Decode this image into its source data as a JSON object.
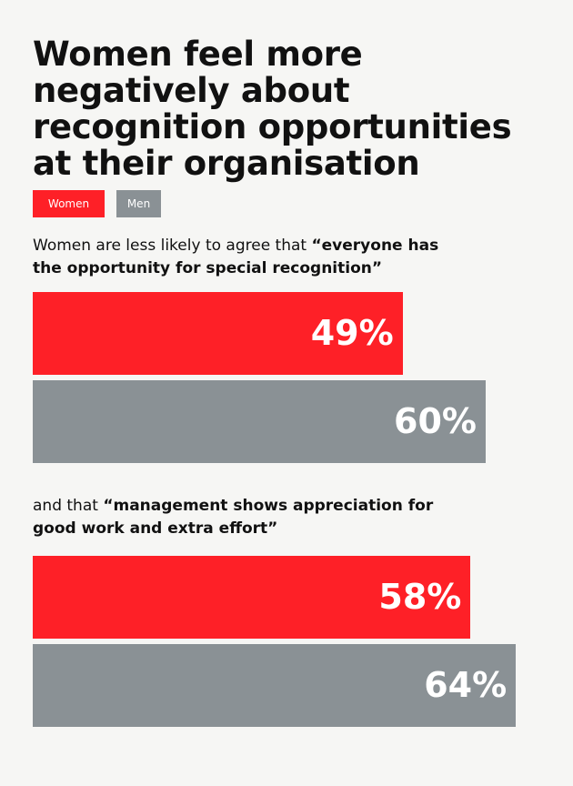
{
  "chart_data": {
    "type": "bar",
    "orientation": "horizontal",
    "title": "Women feel more negatively about recognition opportunities at their organisation",
    "categories": [
      "Women are less likely to agree that “everyone has the opportunity for special recognition”",
      "and that “management shows appreciation for good work and extra effort”"
    ],
    "series": [
      {
        "name": "Women",
        "color": "#fe2027",
        "values": [
          49,
          58
        ],
        "value_labels": [
          "49%",
          "58%"
        ]
      },
      {
        "name": "Men",
        "color": "#8a9195",
        "values": [
          60,
          64
        ],
        "value_labels": [
          "60%",
          "64%"
        ]
      }
    ]
  }
}
